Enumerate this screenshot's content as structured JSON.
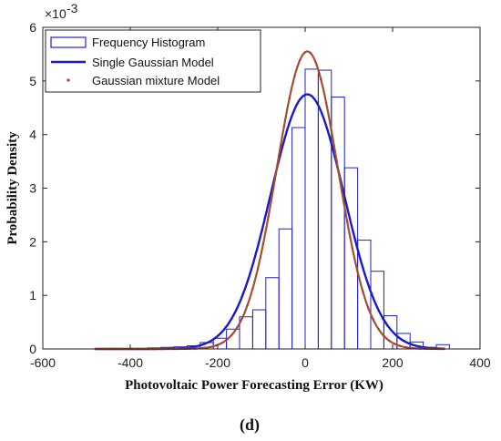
{
  "chart_data": {
    "type": "bar",
    "title": "",
    "xlabel": "Photovoltaic Power Forecasting Error (KW)",
    "ylabel": "Probability Density",
    "y_exponent_label": "×10",
    "y_exponent_power": "-3",
    "xlim": [
      -600,
      400
    ],
    "ylim": [
      0,
      6
    ],
    "x_ticks": [
      -600,
      -400,
      -200,
      0,
      200,
      400
    ],
    "x_tick_labels": [
      "-600",
      "-400",
      "-200",
      "0",
      "200",
      "400"
    ],
    "y_ticks": [
      0,
      1,
      2,
      3,
      4,
      5,
      6
    ],
    "y_tick_labels": [
      "0",
      "1",
      "2",
      "3",
      "4",
      "5",
      "6"
    ],
    "grid": false,
    "legend_position": "top-left",
    "histogram": {
      "name": "Frequency Histogram",
      "color": "#2222cc",
      "bin_width": 30,
      "bin_left_edges": [
        -480,
        -450,
        -420,
        -390,
        -360,
        -330,
        -300,
        -270,
        -240,
        -210,
        -180,
        -150,
        -120,
        -90,
        -60,
        -30,
        0,
        30,
        60,
        90,
        120,
        150,
        180,
        210,
        240,
        270,
        300
      ],
      "values": [
        0.0,
        0.0,
        0.0,
        0.0,
        0.02,
        0.03,
        0.04,
        0.06,
        0.12,
        0.2,
        0.37,
        0.6,
        0.73,
        1.33,
        2.24,
        4.13,
        5.22,
        5.2,
        4.7,
        3.38,
        2.03,
        1.45,
        0.62,
        0.29,
        0.13,
        0.03,
        0.08
      ]
    },
    "series": [
      {
        "name": "Single Gaussian Model",
        "color": "#1a1acc",
        "type": "line",
        "mean": 5,
        "std": 84,
        "peak": 4.75,
        "x_range": [
          -480,
          320
        ]
      },
      {
        "name": "Gaussian mixture Model",
        "color": "#a0522d",
        "type": "line",
        "mean": 5,
        "std": 70,
        "peak": 5.55,
        "x_range": [
          -480,
          320
        ]
      }
    ],
    "caption": "(d)"
  }
}
